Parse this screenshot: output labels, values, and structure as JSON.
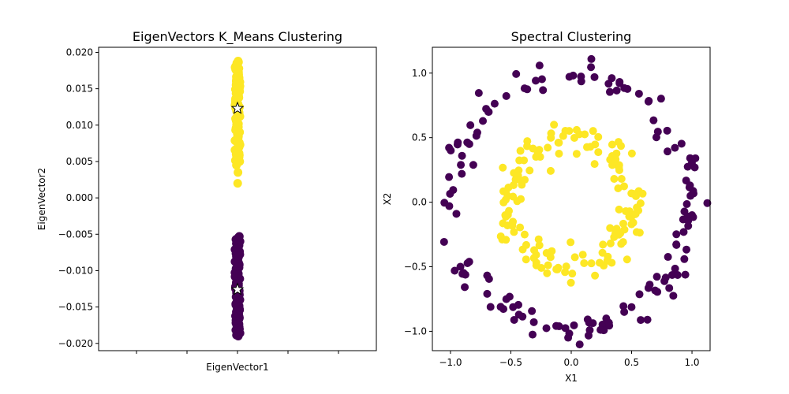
{
  "chart_data": [
    {
      "type": "scatter",
      "title": "EigenVectors K_Means Clustering",
      "xlabel": "EigenVector1",
      "ylabel": "EigenVector2",
      "xlim": [
        -0.55,
        0.55
      ],
      "ylim": [
        -0.021,
        0.0207
      ],
      "x_tick_labels_shown": false,
      "yticks": [
        "0.020",
        "0.015",
        "0.010",
        "0.005",
        "0.000",
        "−0.005",
        "−0.010",
        "−0.015",
        "−0.020"
      ],
      "ytick_values": [
        0.02,
        0.015,
        0.01,
        0.005,
        0.0,
        -0.005,
        -0.01,
        -0.015,
        -0.02
      ],
      "colors": {
        "cluster0": "#440154",
        "cluster1": "#fde725"
      },
      "series": [
        {
          "cluster": 1,
          "x": 0.0,
          "y_min": 0.002,
          "y_max": 0.0188,
          "y_dense_from": 0.005,
          "n": 100
        },
        {
          "cluster": 0,
          "x": 0.0,
          "y_min": -0.019,
          "y_max": -0.0053,
          "n": 100
        }
      ],
      "centroids": [
        {
          "x": 0.0,
          "y": 0.0123,
          "marker": "star"
        },
        {
          "x": 0.0,
          "y": -0.0126,
          "marker": "star"
        }
      ]
    },
    {
      "type": "scatter",
      "title": "Spectral Clustering",
      "xlabel": "X1",
      "ylabel": "X2",
      "xlim": [
        -1.15,
        1.15
      ],
      "ylim": [
        -1.15,
        1.2
      ],
      "xticks": [
        "−1.0",
        "−0.5",
        "0.0",
        "0.5",
        "1.0"
      ],
      "xtick_values": [
        -1.0,
        -0.5,
        0.0,
        0.5,
        1.0
      ],
      "yticks": [
        "1.0",
        "0.5",
        "0.0",
        "−0.5",
        "−1.0"
      ],
      "ytick_values": [
        1.0,
        0.5,
        0.0,
        -0.5,
        -1.0
      ],
      "colors": {
        "outer": "#440154",
        "inner": "#fde725"
      },
      "series": [
        {
          "cluster": "outer",
          "shape": "ring",
          "radius": 1.0,
          "noise": 0.06,
          "n": 150
        },
        {
          "cluster": "inner",
          "shape": "ring",
          "radius": 0.5,
          "noise": 0.06,
          "n": 150
        }
      ]
    }
  ]
}
